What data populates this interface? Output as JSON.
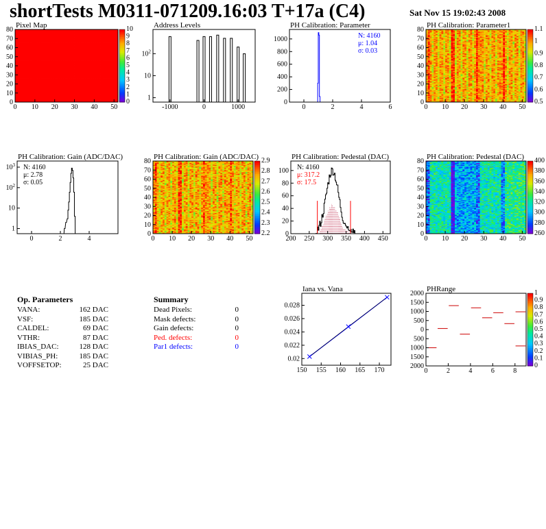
{
  "header": {
    "title": "shortTests M0311-071209.16:03 T+17a (C4)",
    "datestamp": "Sat Nov 15 19:02:43 2008"
  },
  "panels": [
    {
      "title": "Pixel Map"
    },
    {
      "title": "Address Levels"
    },
    {
      "title": "PH Calibration: Parameter"
    },
    {
      "title": "PH Calibration: Parameter1"
    },
    {
      "title": "PH Calibration: Gain (ADC/DAC)"
    },
    {
      "title": "PH Calibration: Gain (ADC/DAC)"
    },
    {
      "title": "PH Calibration: Pedestal (DAC)"
    },
    {
      "title": "PH Calibration: Pedestal (DAC)"
    },
    {
      "title": "Iana vs. Vana"
    },
    {
      "title": "PHRange"
    }
  ],
  "op_parameters": {
    "heading": "Op. Parameters",
    "rows": [
      {
        "name": "VANA:",
        "value": "162 DAC"
      },
      {
        "name": "VSF:",
        "value": "185 DAC"
      },
      {
        "name": "CALDEL:",
        "value": "69 DAC"
      },
      {
        "name": "VTHR:",
        "value": "87 DAC"
      },
      {
        "name": "IBIAS_DAC:",
        "value": "128 DAC"
      },
      {
        "name": "VIBIAS_PH:",
        "value": "185 DAC"
      },
      {
        "name": "VOFFSETOP:",
        "value": "25 DAC"
      }
    ]
  },
  "summary": {
    "heading": "Summary",
    "rows": [
      {
        "name": "Dead Pixels:",
        "value": "0",
        "color": "#000000"
      },
      {
        "name": "Mask defects:",
        "value": "0",
        "color": "#000000"
      },
      {
        "name": "Gain defects:",
        "value": "0",
        "color": "#000000"
      },
      {
        "name": "Ped. defects:",
        "value": "0",
        "color": "#ff0000"
      },
      {
        "name": "Par1 defects:",
        "value": "0",
        "color": "#0000ff"
      }
    ]
  },
  "chart_data": [
    {
      "type": "heatmap",
      "title": "Pixel Map",
      "xlim": [
        0,
        52
      ],
      "ylim": [
        0,
        80
      ],
      "xticks": [
        "0",
        "10",
        "20",
        "30",
        "40",
        "50"
      ],
      "yticks": [
        "0",
        "10",
        "20",
        "30",
        "40",
        "50",
        "60",
        "70",
        "80"
      ],
      "cell_value": 10,
      "zrange": [
        0,
        10
      ],
      "zticks": [
        "0",
        "1",
        "2",
        "3",
        "4",
        "5",
        "6",
        "7",
        "8",
        "9",
        "10"
      ],
      "note": "all 4160 pixels at maximum (uniform red)"
    },
    {
      "type": "bar",
      "title": "Address Levels",
      "xlim": [
        -1500,
        1500
      ],
      "log_y": true,
      "xticks": [
        "-1000",
        "0",
        "1000"
      ],
      "yticks": [
        "1",
        "10",
        "10^2"
      ],
      "peaks": [
        {
          "x": -1000,
          "h": 600
        },
        {
          "x": -180,
          "h": 400
        },
        {
          "x": 0,
          "h": 600
        },
        {
          "x": 190,
          "h": 600
        },
        {
          "x": 400,
          "h": 700
        },
        {
          "x": 600,
          "h": 500
        },
        {
          "x": 800,
          "h": 500
        },
        {
          "x": 1000,
          "h": 200
        },
        {
          "x": 1180,
          "h": 100
        }
      ]
    },
    {
      "type": "bar",
      "title": "PH Calibration: Parameter",
      "xlim": [
        -1,
        6
      ],
      "ylim": [
        0,
        1150
      ],
      "xticks": [
        "0",
        "2",
        "4",
        "6"
      ],
      "yticks": [
        "0",
        "200",
        "400",
        "600",
        "800",
        "1000"
      ],
      "bins": [
        {
          "x": 0.98,
          "h": 300
        },
        {
          "x": 1.02,
          "h": 1100
        },
        {
          "x": 1.06,
          "h": 1060
        },
        {
          "x": 1.1,
          "h": 90
        }
      ],
      "stats": {
        "N": "N: 4160",
        "mean": "μ: 1.04",
        "sigma": "σ: 0.03"
      },
      "stat_color": "#0000ff"
    },
    {
      "type": "heatmap",
      "title": "PH Calibration: Parameter1",
      "xlim": [
        0,
        52
      ],
      "ylim": [
        0,
        80
      ],
      "xticks": [
        "0",
        "10",
        "20",
        "30",
        "40",
        "50"
      ],
      "yticks": [
        "0",
        "10",
        "20",
        "30",
        "40",
        "50",
        "60",
        "70",
        "80"
      ],
      "zrange": [
        0.5,
        1.1
      ],
      "zticks": [
        "0.5",
        "0.6",
        "0.7",
        "0.8",
        "0.9",
        "1",
        "1.1"
      ],
      "typical_z": 0.95
    },
    {
      "type": "bar",
      "title": "PH Calibration: Gain (ADC/DAC)",
      "xlim": [
        -1,
        6
      ],
      "log_y": true,
      "xticks": [
        "0",
        "2",
        "4"
      ],
      "yticks": [
        "1",
        "10",
        "10^2",
        "10^3"
      ],
      "bins": [
        {
          "x": 2.3,
          "h": 1
        },
        {
          "x": 2.4,
          "h": 2
        },
        {
          "x": 2.5,
          "h": 3
        },
        {
          "x": 2.55,
          "h": 8
        },
        {
          "x": 2.6,
          "h": 20
        },
        {
          "x": 2.65,
          "h": 60
        },
        {
          "x": 2.7,
          "h": 180
        },
        {
          "x": 2.75,
          "h": 500
        },
        {
          "x": 2.8,
          "h": 900
        },
        {
          "x": 2.85,
          "h": 700
        },
        {
          "x": 2.9,
          "h": 300
        },
        {
          "x": 2.95,
          "h": 60
        },
        {
          "x": 3.0,
          "h": 4
        }
      ],
      "stats": {
        "N": "N: 4160",
        "mean": "μ: 2.78",
        "sigma": "σ: 0.05"
      },
      "stat_color": "#000000"
    },
    {
      "type": "heatmap",
      "title": "PH Calibration: Gain (ADC/DAC)",
      "xlim": [
        0,
        52
      ],
      "ylim": [
        0,
        80
      ],
      "xticks": [
        "0",
        "10",
        "20",
        "30",
        "40",
        "50"
      ],
      "yticks": [
        "0",
        "10",
        "20",
        "30",
        "40",
        "50",
        "60",
        "70",
        "80"
      ],
      "zrange": [
        2.2,
        2.9
      ],
      "zticks": [
        "2.2",
        "2.3",
        "2.4",
        "2.5",
        "2.6",
        "2.7",
        "2.8",
        "2.9"
      ],
      "typical_z": 2.78
    },
    {
      "type": "bar",
      "title": "PH Calibration: Pedestal (DAC)",
      "xlim": [
        200,
        470
      ],
      "ylim": [
        0,
        115
      ],
      "xticks": [
        "200",
        "250",
        "300",
        "350",
        "400",
        "450"
      ],
      "yticks": [
        "0",
        "20",
        "40",
        "60",
        "80",
        "100"
      ],
      "mean": 317.2,
      "sigma": 17.5,
      "cut_lines": [
        272,
        362
      ],
      "stats": {
        "N": "N: 4160",
        "mean": "μ: 317.2",
        "sigma": "σ: 17.5"
      },
      "stat_colors": [
        "#000000",
        "#ff0000",
        "#ff0000"
      ]
    },
    {
      "type": "heatmap",
      "title": "PH Calibration: Pedestal (DAC)",
      "xlim": [
        0,
        52
      ],
      "ylim": [
        0,
        80
      ],
      "xticks": [
        "0",
        "10",
        "20",
        "30",
        "40",
        "50"
      ],
      "yticks": [
        "0",
        "10",
        "20",
        "30",
        "40",
        "50",
        "60",
        "70",
        "80"
      ],
      "zrange": [
        260,
        400
      ],
      "zticks": [
        "260",
        "280",
        "300",
        "320",
        "340",
        "360",
        "380",
        "400"
      ],
      "typical_z": 317
    },
    {
      "type": "line",
      "title": "Iana vs. Vana",
      "xlim": [
        150,
        173
      ],
      "ylim": [
        0.019,
        0.0298
      ],
      "xticks": [
        "150",
        "155",
        "160",
        "165",
        "170"
      ],
      "yticks": [
        "0.02",
        "0.022",
        "0.024",
        "0.026",
        "0.028"
      ],
      "x": [
        152,
        162,
        172
      ],
      "y": [
        0.0203,
        0.0248,
        0.0292
      ]
    },
    {
      "type": "scatter",
      "title": "PHRange",
      "xlim": [
        0,
        9
      ],
      "ylim": [
        -2000,
        2000
      ],
      "xticks": [
        "0",
        "2",
        "4",
        "6",
        "8"
      ],
      "yticks": [
        "2000",
        "1500",
        "1000",
        "500",
        "0",
        "500",
        "1000",
        "1500",
        "2000"
      ],
      "zticks": [
        "0",
        "0.1",
        "0.2",
        "0.3",
        "0.4",
        "0.5",
        "0.6",
        "0.7",
        "0.8",
        "0.9",
        "1"
      ],
      "segments": [
        {
          "x": 0.5,
          "y": -1000
        },
        {
          "x": 1.5,
          "y": 60
        },
        {
          "x": 2.5,
          "y": 1320
        },
        {
          "x": 3.5,
          "y": -250
        },
        {
          "x": 4.5,
          "y": 1200
        },
        {
          "x": 5.5,
          "y": 650
        },
        {
          "x": 6.5,
          "y": 930
        },
        {
          "x": 7.5,
          "y": 330
        },
        {
          "x": 8.5,
          "y": 980
        },
        {
          "x": 8.5,
          "y": -900
        }
      ]
    }
  ]
}
